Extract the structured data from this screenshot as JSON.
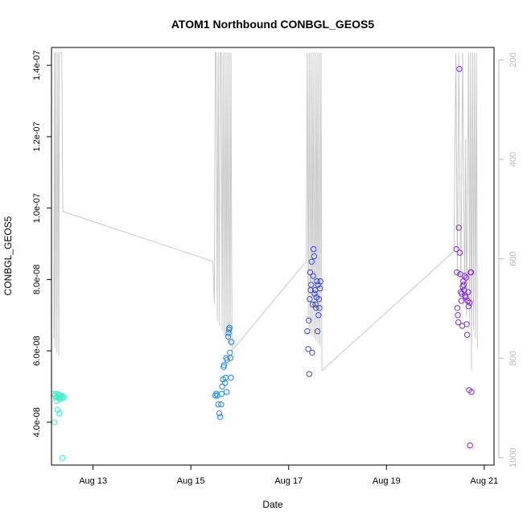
{
  "chart_data": {
    "type": "scatter",
    "title": "ATOM1 Northbound CONBGL_GEOS5",
    "xlabel": "Date",
    "ylabel": "CONBGL_GEOS5",
    "x_unit": "days",
    "xlim": [
      12.15,
      21.2
    ],
    "ylim": [
      2.8e-08,
      1.45e-07
    ],
    "y2lim": [
      1015,
      175
    ],
    "x_ticks": [
      {
        "value": 13,
        "label": "Aug 13"
      },
      {
        "value": 15,
        "label": "Aug 15"
      },
      {
        "value": 17,
        "label": "Aug 17"
      },
      {
        "value": 19,
        "label": "Aug 19"
      },
      {
        "value": 21,
        "label": "Aug 21"
      }
    ],
    "y_ticks": [
      {
        "value": 4e-08,
        "label": "4.0e-08"
      },
      {
        "value": 6e-08,
        "label": "6.0e-08"
      },
      {
        "value": 8e-08,
        "label": "8.0e-08"
      },
      {
        "value": 1e-07,
        "label": "1.0e-07"
      },
      {
        "value": 1.2e-07,
        "label": "1.2e-07"
      },
      {
        "value": 1.4e-07,
        "label": "1.4e-07"
      }
    ],
    "y2_ticks": [
      {
        "value": 200,
        "label": "200"
      },
      {
        "value": 400,
        "label": "400"
      },
      {
        "value": 600,
        "label": "600"
      },
      {
        "value": 800,
        "label": "800"
      },
      {
        "value": 1000,
        "label": "1000"
      }
    ],
    "colors": {
      "points_start": "#3cf5c8",
      "points_mid": "#1a9be8",
      "points_late": "#3a3be0",
      "points_end": "#8a24e0",
      "pressure_line": "#c8c8c8",
      "axis": "#000000",
      "right_axis": "#b8b8b8"
    },
    "series": [
      {
        "values": [
          [
            12.2,
            4.8e-08
          ],
          [
            12.22,
            4.75e-08
          ],
          [
            12.24,
            4.7e-08
          ],
          [
            12.26,
            4.8e-08
          ],
          [
            12.28,
            4.7e-08
          ],
          [
            12.3,
            4.75e-08
          ],
          [
            12.32,
            4.65e-08
          ],
          [
            12.34,
            4.75e-08
          ],
          [
            12.36,
            4.7e-08
          ],
          [
            12.38,
            4.72e-08
          ],
          [
            12.4,
            4.7e-08
          ],
          [
            12.25,
            4.6e-08
          ],
          [
            12.27,
            4.35e-08
          ],
          [
            12.31,
            4.25e-08
          ],
          [
            12.21,
            4e-08
          ],
          [
            12.37,
            3e-08
          ],
          [
            12.33,
            4.68e-08
          ],
          [
            12.29,
            4.78e-08
          ],
          [
            15.5,
            4.75e-08
          ],
          [
            15.52,
            4.8e-08
          ],
          [
            15.54,
            4.75e-08
          ],
          [
            15.56,
            4.5e-08
          ],
          [
            15.58,
            4.25e-08
          ],
          [
            15.6,
            4.15e-08
          ],
          [
            15.62,
            4.5e-08
          ],
          [
            15.63,
            4.8e-08
          ],
          [
            15.64,
            5e-08
          ],
          [
            15.66,
            5.2e-08
          ],
          [
            15.67,
            5.55e-08
          ],
          [
            15.68,
            5.6e-08
          ],
          [
            15.7,
            5.1e-08
          ],
          [
            15.71,
            5.25e-08
          ],
          [
            15.72,
            5.8e-08
          ],
          [
            15.73,
            4.85e-08
          ],
          [
            15.74,
            5.75e-08
          ],
          [
            15.76,
            6.4e-08
          ],
          [
            15.77,
            6.5e-08
          ],
          [
            15.78,
            6.6e-08
          ],
          [
            15.79,
            6.65e-08
          ],
          [
            15.8,
            5.95e-08
          ],
          [
            15.81,
            5.8e-08
          ],
          [
            15.82,
            5.25e-08
          ],
          [
            15.83,
            6.25e-08
          ],
          [
            17.38,
            6.55e-08
          ],
          [
            17.4,
            6.05e-08
          ],
          [
            17.41,
            6.85e-08
          ],
          [
            17.42,
            5.35e-08
          ],
          [
            17.43,
            7.45e-08
          ],
          [
            17.44,
            8.2e-08
          ],
          [
            17.45,
            7.7e-08
          ],
          [
            17.46,
            7.85e-08
          ],
          [
            17.47,
            8.5e-08
          ],
          [
            17.48,
            5.95e-08
          ],
          [
            17.49,
            7.3e-08
          ],
          [
            17.5,
            8.1e-08
          ],
          [
            17.51,
            8.85e-08
          ],
          [
            17.52,
            8.65e-08
          ],
          [
            17.53,
            7.6e-08
          ],
          [
            17.54,
            7.7e-08
          ],
          [
            17.55,
            7.3e-08
          ],
          [
            17.56,
            7.2e-08
          ],
          [
            17.57,
            7.5e-08
          ],
          [
            17.58,
            7.95e-08
          ],
          [
            17.59,
            6.55e-08
          ],
          [
            17.6,
            7.85e-08
          ],
          [
            17.61,
            7e-08
          ],
          [
            17.62,
            7.45e-08
          ],
          [
            17.63,
            7.2e-08
          ],
          [
            17.64,
            7.75e-08
          ],
          [
            17.65,
            7.95e-08
          ],
          [
            20.43,
            8.85e-08
          ],
          [
            20.44,
            8.2e-08
          ],
          [
            20.45,
            7.2e-08
          ],
          [
            20.46,
            7e-08
          ],
          [
            20.47,
            6.8e-08
          ],
          [
            20.48,
            9.45e-08
          ],
          [
            20.49,
            1.39e-07
          ],
          [
            20.5,
            8.75e-08
          ],
          [
            20.51,
            8.15e-08
          ],
          [
            20.52,
            7.65e-08
          ],
          [
            20.53,
            7.4e-08
          ],
          [
            20.54,
            7.6e-08
          ],
          [
            20.55,
            6.7e-08
          ],
          [
            20.56,
            7.8e-08
          ],
          [
            20.57,
            7.95e-08
          ],
          [
            20.58,
            7.85e-08
          ],
          [
            20.59,
            7.7e-08
          ],
          [
            20.6,
            8.1e-08
          ],
          [
            20.61,
            7.55e-08
          ],
          [
            20.62,
            7.5e-08
          ],
          [
            20.63,
            8.05e-08
          ],
          [
            20.64,
            6.75e-08
          ],
          [
            20.65,
            6.45e-08
          ],
          [
            20.66,
            7.4e-08
          ],
          [
            20.67,
            7.65e-08
          ],
          [
            20.68,
            7.25e-08
          ],
          [
            20.69,
            4.9e-08
          ],
          [
            20.7,
            7.35e-08
          ],
          [
            20.71,
            3.35e-08
          ],
          [
            20.72,
            8.2e-08
          ],
          [
            20.73,
            8.2e-08
          ],
          [
            20.74,
            4.85e-08
          ]
        ]
      },
      {
        "axis": "right",
        "values": [
          [
            12.2,
            760
          ],
          [
            12.21,
            185
          ],
          [
            12.22,
            780
          ],
          [
            12.24,
            185
          ],
          [
            12.26,
            790
          ],
          [
            12.28,
            185
          ],
          [
            12.3,
            795
          ],
          [
            12.31,
            185
          ],
          [
            12.32,
            185
          ],
          [
            12.34,
            185
          ],
          [
            12.36,
            185
          ],
          [
            12.38,
            505
          ],
          [
            15.45,
            605
          ],
          [
            15.48,
            690
          ],
          [
            15.5,
            185
          ],
          [
            15.52,
            185
          ],
          [
            15.54,
            725
          ],
          [
            15.56,
            185
          ],
          [
            15.58,
            735
          ],
          [
            15.6,
            185
          ],
          [
            15.62,
            185
          ],
          [
            15.64,
            745
          ],
          [
            15.66,
            185
          ],
          [
            15.68,
            755
          ],
          [
            15.7,
            185
          ],
          [
            15.72,
            760
          ],
          [
            15.74,
            185
          ],
          [
            15.76,
            770
          ],
          [
            15.78,
            185
          ],
          [
            15.8,
            775
          ],
          [
            15.82,
            185
          ],
          [
            15.84,
            785
          ],
          [
            17.36,
            605
          ],
          [
            17.38,
            185
          ],
          [
            17.4,
            725
          ],
          [
            17.42,
            185
          ],
          [
            17.44,
            745
          ],
          [
            17.46,
            185
          ],
          [
            17.48,
            755
          ],
          [
            17.5,
            185
          ],
          [
            17.52,
            760
          ],
          [
            17.54,
            185
          ],
          [
            17.56,
            765
          ],
          [
            17.58,
            185
          ],
          [
            17.6,
            770
          ],
          [
            17.62,
            185
          ],
          [
            17.64,
            775
          ],
          [
            17.66,
            185
          ],
          [
            17.68,
            825
          ],
          [
            20.38,
            585
          ],
          [
            20.42,
            185
          ],
          [
            20.45,
            640
          ],
          [
            20.48,
            185
          ],
          [
            20.52,
            665
          ],
          [
            20.56,
            185
          ],
          [
            20.6,
            690
          ],
          [
            20.62,
            360
          ],
          [
            20.64,
            715
          ],
          [
            20.68,
            185
          ],
          [
            20.7,
            730
          ],
          [
            20.72,
            185
          ],
          [
            20.74,
            825
          ],
          [
            20.76,
            185
          ],
          [
            20.78,
            745
          ],
          [
            20.8,
            185
          ],
          [
            20.82,
            760
          ],
          [
            20.84,
            185
          ],
          [
            20.86,
            780
          ]
        ]
      }
    ]
  }
}
